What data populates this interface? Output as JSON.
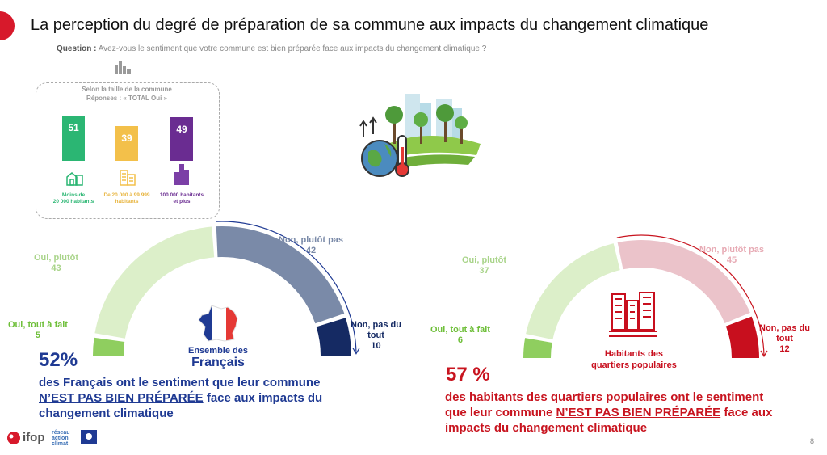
{
  "title": "La perception du degré de préparation de sa commune aux impacts du changement climatique",
  "question": {
    "prefix": "Question :",
    "text": "Avez-vous le sentiment que votre commune est bien préparée face aux impacts du changement climatique ?"
  },
  "inset": {
    "caption_line1": "Selon la taille de la commune",
    "caption_line2": "Réponses : « TOTAL Oui »",
    "colors": [
      "#2bb673",
      "#f3c04a",
      "#6a2c91"
    ],
    "bars": [
      {
        "label_line1": "Moins de",
        "label_line2": "20 000 habitants",
        "value": 51,
        "value_text": "51"
      },
      {
        "label_line1": "De 20 000 à 99 999",
        "label_line2": "habitants",
        "value": 39,
        "value_text": "39"
      },
      {
        "label_line1": "100 000 habitants",
        "label_line2": "et plus",
        "value": 49,
        "value_text": "49"
      }
    ]
  },
  "chart_data": [
    {
      "type": "pie",
      "subtype": "half-donut",
      "center_label_line1": "Ensemble des",
      "center_label_line2": "Français",
      "categories": [
        "Oui, tout à fait",
        "Oui, plutôt",
        "Non, plutôt pas",
        "Non, pas du tout"
      ],
      "values": [
        5,
        43,
        42,
        10
      ],
      "colors": [
        "#8fce5f",
        "#dcefc9",
        "#7a8aa8",
        "#152a63"
      ],
      "labels": [
        {
          "name": "Oui, tout à fait",
          "value": "5"
        },
        {
          "name": "Oui, plutôt",
          "value": "43"
        },
        {
          "name": "Non, plutôt pas",
          "value": "42"
        },
        {
          "name": "Non, pas du",
          "name2": "tout",
          "value": "10"
        }
      ]
    },
    {
      "type": "pie",
      "subtype": "half-donut",
      "center_label_line1": "Habitants des",
      "center_label_line2": "quartiers populaires",
      "categories": [
        "Oui, tout à fait",
        "Oui, plutôt",
        "Non, plutôt pas",
        "Non, pas du tout"
      ],
      "values": [
        6,
        37,
        45,
        12
      ],
      "colors": [
        "#8fce5f",
        "#dcefc9",
        "#ebc3ca",
        "#c80f1e"
      ],
      "labels": [
        {
          "name": "Oui, tout à fait",
          "value": "6"
        },
        {
          "name": "Oui, plutôt",
          "value": "37"
        },
        {
          "name": "Non, plutôt pas",
          "value": "45"
        },
        {
          "name": "Non, pas du",
          "name2": "tout",
          "value": "12"
        }
      ]
    }
  ],
  "summary_left": {
    "percent": "52%",
    "line1": "des Français ont le sentiment que leur commune",
    "emph": "N’EST PAS BIEN PRÉPARÉE",
    "line2_rest": "face aux impacts du",
    "line3": "changement climatique",
    "color": "#1f3a93"
  },
  "summary_right": {
    "percent": "57 %",
    "line1": "des habitants des quartiers populaires ont le sentiment",
    "line2_pre": "que leur commune",
    "emph": "N’EST PAS BIEN PRÉPARÉE",
    "line2_post": "face aux",
    "line3": "impacts du changement climatique",
    "color": "#c8141f"
  },
  "footer": {
    "logo_text": "ifop",
    "partner_line1": "réseau",
    "partner_line2": "action",
    "partner_line3": "climat",
    "page_number": "8"
  }
}
